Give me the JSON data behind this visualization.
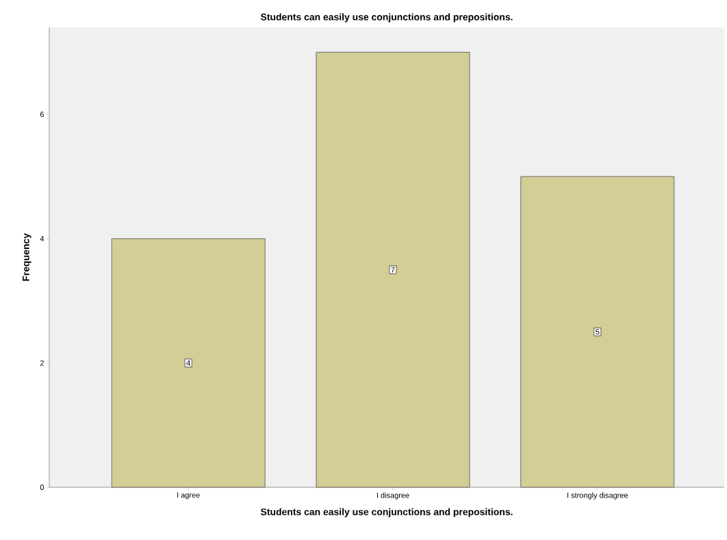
{
  "chart_data": {
    "type": "bar",
    "title": "Students can easily use conjunctions and prepositions.",
    "xlabel": "Students can easily use conjunctions and prepositions.",
    "ylabel": "Frequency",
    "categories": [
      "I agree",
      "I disagree",
      "I strongly disagree"
    ],
    "values": [
      4,
      7,
      5
    ],
    "color": "#d3cd96",
    "ylim": [
      0,
      7.4
    ],
    "yticks": [
      0,
      2,
      4,
      6
    ],
    "data_labels": true,
    "grid": false
  }
}
